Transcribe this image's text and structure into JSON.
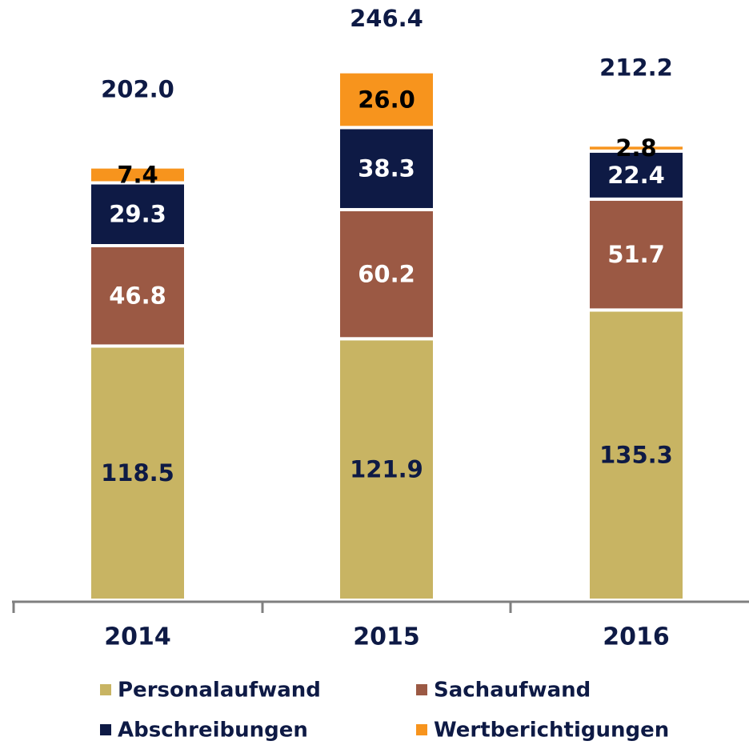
{
  "chart_data": {
    "type": "stacked_bar",
    "categories": [
      "2014",
      "2015",
      "2016"
    ],
    "series": [
      {
        "name": "Personalaufwand",
        "color": "#c8b463",
        "label_color": "#0e1a45",
        "values": [
          118.5,
          121.9,
          135.3
        ]
      },
      {
        "name": "Sachaufwand",
        "color": "#9b5944",
        "label_color": "#ffffff",
        "values": [
          46.8,
          60.2,
          51.7
        ]
      },
      {
        "name": "Abschreibungen",
        "color": "#0e1a45",
        "label_color": "#ffffff",
        "values": [
          29.3,
          38.3,
          22.4
        ]
      },
      {
        "name": "Wertberichtigungen",
        "color": "#f7941d",
        "label_color": "#000000",
        "values": [
          7.4,
          26.0,
          2.8
        ],
        "value_labels": [
          "7.4",
          "26.0",
          "2.8"
        ]
      }
    ],
    "totals": {
      "values": [
        202.0,
        246.4,
        212.2
      ],
      "value_labels": [
        "202.0",
        "246.4",
        "212.2"
      ]
    }
  }
}
